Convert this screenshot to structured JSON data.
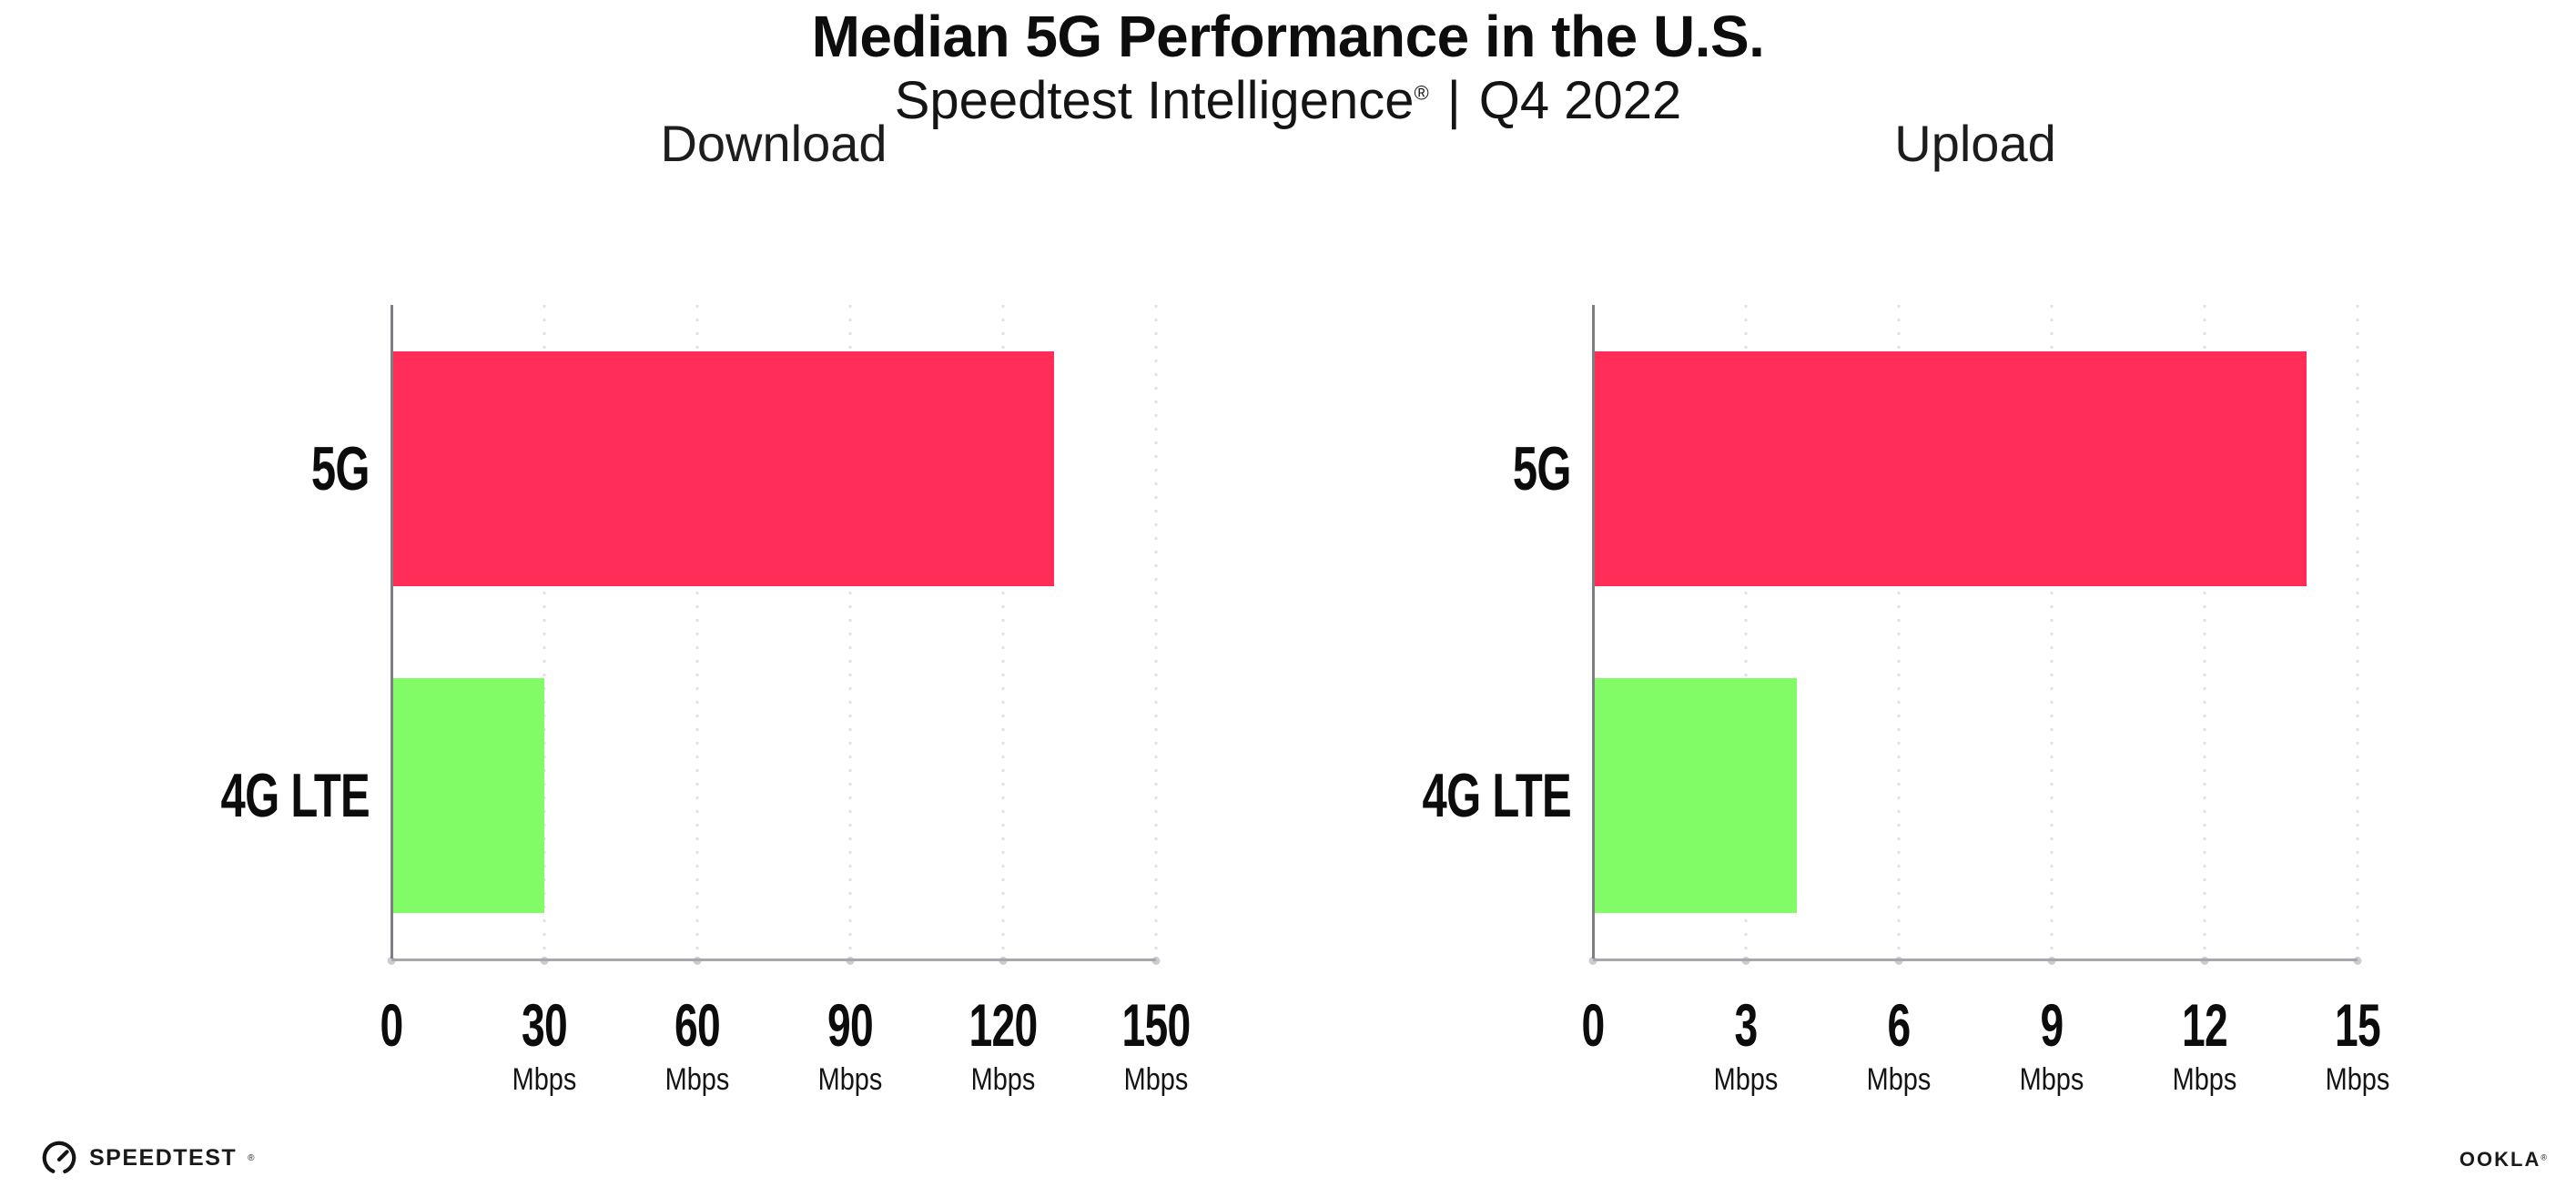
{
  "title": "Median 5G Performance in the U.S.",
  "subtitle": {
    "brand": "Speedtest Intelligence",
    "reg_mark": "®",
    "separator": "|",
    "period": "Q4 2022"
  },
  "footer": {
    "speedtest_logo_text": "SPEEDTEST",
    "speedtest_trademark": "®",
    "ookla_logo_text": "OOKLA",
    "ookla_trademark": "®"
  },
  "colors": {
    "bar_5g": "#ff2d58",
    "bar_4g_lte": "#81fc67",
    "x_axis_line": "#a8a8ac",
    "y_axis_line": "#7e7e83",
    "gridline": "#e0e0e7",
    "tick_dot": "#cbcbd2",
    "text": "#111111"
  },
  "chart_data": [
    {
      "type": "bar",
      "orientation": "horizontal",
      "title": "Download",
      "categories": [
        "5G",
        "4G LTE"
      ],
      "values": [
        130,
        30
      ],
      "unit": "Mbps",
      "xlim": [
        0,
        150
      ],
      "xticks": [
        0,
        30,
        60,
        90,
        120,
        150
      ],
      "bar_colors": [
        "#ff2d58",
        "#81fc67"
      ],
      "grid": "dotted-vertical",
      "legend": "none"
    },
    {
      "type": "bar",
      "orientation": "horizontal",
      "title": "Upload",
      "categories": [
        "5G",
        "4G LTE"
      ],
      "values": [
        14,
        4
      ],
      "unit": "Mbps",
      "xlim": [
        0,
        15
      ],
      "xticks": [
        0,
        3,
        6,
        9,
        12,
        15
      ],
      "bar_colors": [
        "#ff2d58",
        "#81fc67"
      ],
      "grid": "dotted-vertical",
      "legend": "none"
    }
  ]
}
